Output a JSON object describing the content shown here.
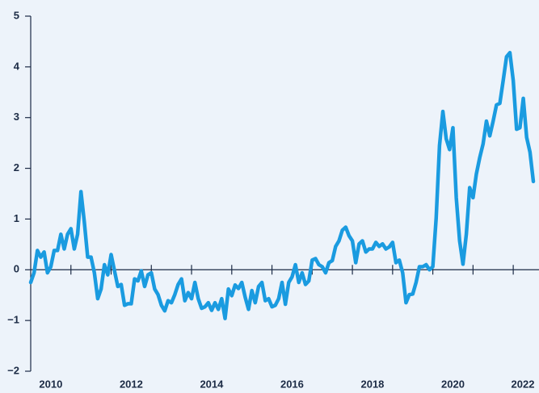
{
  "chart_data": {
    "type": "line",
    "series": [
      {
        "color": "#1a9be0",
        "values": [
          -0.25,
          -0.06,
          0.38,
          0.25,
          0.35,
          -0.06,
          0.06,
          0.38,
          0.38,
          0.7,
          0.41,
          0.7,
          0.81,
          0.41,
          0.7,
          1.54,
          0.94,
          0.25,
          0.25,
          -0.06,
          -0.57,
          -0.38,
          0.1,
          -0.1,
          0.3,
          -0.02,
          -0.33,
          -0.29,
          -0.7,
          -0.67,
          -0.67,
          -0.18,
          -0.22,
          -0.02,
          -0.33,
          -0.1,
          -0.06,
          -0.38,
          -0.49,
          -0.7,
          -0.81,
          -0.61,
          -0.65,
          -0.49,
          -0.29,
          -0.18,
          -0.61,
          -0.45,
          -0.57,
          -0.25,
          -0.57,
          -0.76,
          -0.73,
          -0.65,
          -0.8,
          -0.65,
          -0.78,
          -0.57,
          -0.96,
          -0.38,
          -0.51,
          -0.3,
          -0.37,
          -0.25,
          -0.54,
          -0.78,
          -0.41,
          -0.65,
          -0.33,
          -0.25,
          -0.61,
          -0.57,
          -0.73,
          -0.7,
          -0.57,
          -0.25,
          -0.68,
          -0.25,
          -0.14,
          0.1,
          -0.25,
          -0.06,
          -0.29,
          -0.22,
          0.19,
          0.22,
          0.1,
          0.06,
          -0.06,
          0.14,
          0.18,
          0.46,
          0.57,
          0.78,
          0.84,
          0.67,
          0.57,
          0.14,
          0.51,
          0.57,
          0.35,
          0.41,
          0.41,
          0.54,
          0.46,
          0.51,
          0.41,
          0.45,
          0.54,
          0.14,
          0.19,
          -0.06,
          -0.65,
          -0.49,
          -0.48,
          -0.25,
          0.06,
          0.06,
          0.1,
          0.0,
          0.06,
          1.02,
          2.45,
          3.12,
          2.58,
          2.37,
          2.8,
          1.42,
          0.57,
          0.11,
          0.7,
          1.62,
          1.42,
          1.89,
          2.21,
          2.48,
          2.93,
          2.64,
          2.93,
          3.25,
          3.28,
          3.73,
          4.2,
          4.28,
          3.73,
          2.77,
          2.8,
          3.38,
          2.61,
          2.32,
          1.74
        ]
      }
    ],
    "xlim": [
      2010,
      2022.5
    ],
    "xticks": [
      {
        "value": 2010.5,
        "label": "2010"
      },
      {
        "value": 2012.5,
        "label": "2012"
      },
      {
        "value": 2014.5,
        "label": "2014"
      },
      {
        "value": 2016.5,
        "label": "2016"
      },
      {
        "value": 2018.5,
        "label": "2018"
      },
      {
        "value": 2020.5,
        "label": "2020"
      },
      {
        "value": 2022.5,
        "label": "2022"
      }
    ],
    "xminorticks": [
      2011,
      2012,
      2013,
      2014,
      2015,
      2016,
      2017,
      2018,
      2019,
      2020,
      2021,
      2022
    ],
    "ylim": [
      -2,
      5
    ],
    "yticks": [
      {
        "value": -2,
        "label": "−2"
      },
      {
        "value": -1,
        "label": "−1"
      },
      0,
      1,
      2,
      3,
      4,
      5
    ]
  }
}
